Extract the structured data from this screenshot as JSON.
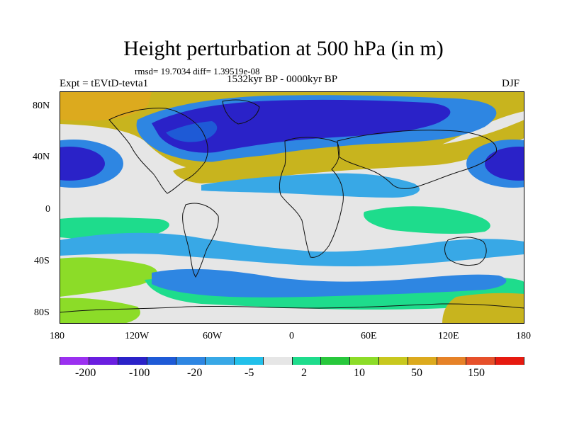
{
  "title": "Height perturbation at 500 hPa (in m)",
  "stats": "rmsd= 19.7034 diff= 1.39519e-08",
  "period": "1532kyr BP - 0000kyr BP",
  "experiment": "Expt = tEVtD-tevta1",
  "season": "DJF",
  "axes": {
    "y_labels": [
      "80N",
      "40N",
      "0",
      "40S",
      "80S"
    ],
    "x_labels": [
      "180",
      "120W",
      "60W",
      "0",
      "60E",
      "120E",
      "180"
    ]
  },
  "colorbar": {
    "colors": [
      "#9b30f0",
      "#6a1ee0",
      "#2a22c8",
      "#1e5ad6",
      "#2e86e2",
      "#38a8e6",
      "#22c0ea",
      "#e6e6e6",
      "#1edc8c",
      "#28c83c",
      "#8cdc28",
      "#c8c81e",
      "#dcaa1e",
      "#e68228",
      "#e6502a",
      "#e61a10"
    ],
    "labels": [
      "-200",
      "-100",
      "-20",
      "-5",
      "2",
      "10",
      "50",
      "150"
    ]
  },
  "colors": {
    "warm_band": "#c8b41e",
    "cool_band": "#2a5ad8",
    "neutral": "#e6e6e6",
    "green": "#1edc8c",
    "light_blue": "#3aa8e6"
  }
}
